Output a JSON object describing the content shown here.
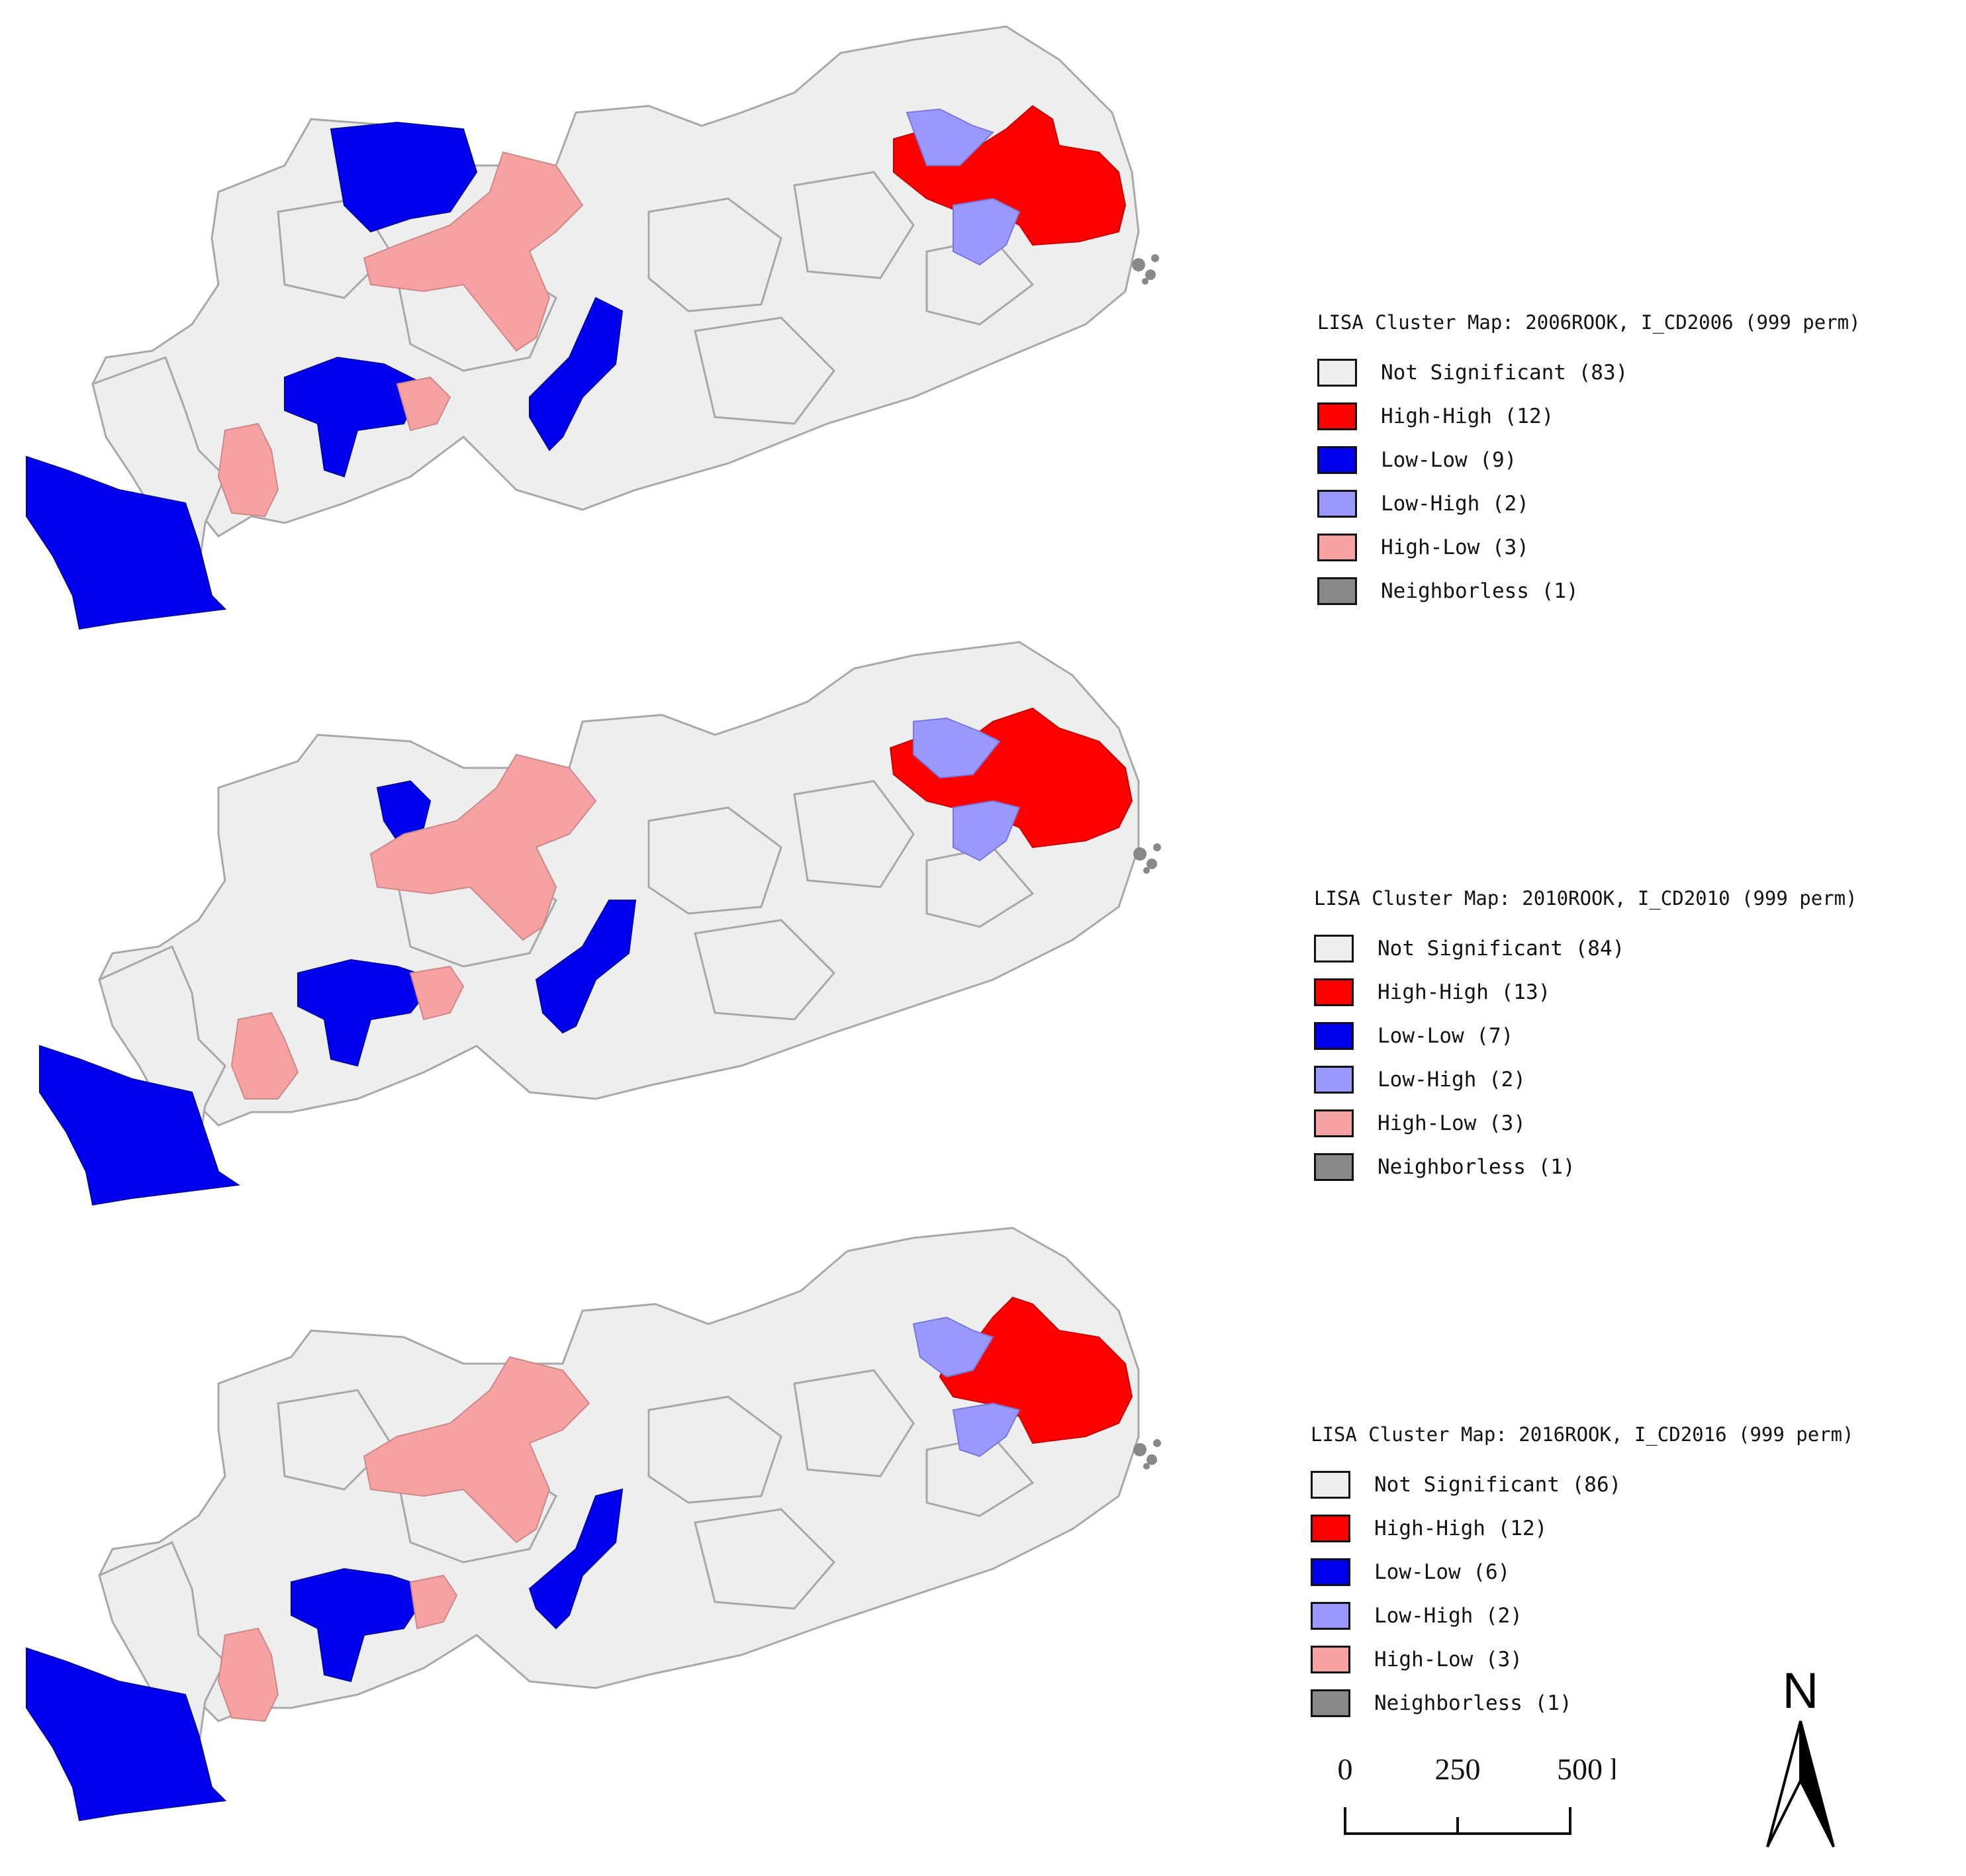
{
  "colors": {
    "not_significant": "#eeeeee",
    "high_high": "#ff0000",
    "low_low": "#0000ee",
    "low_high": "#9999ff",
    "high_low": "#f7a2a2",
    "neighborless": "#888888",
    "boundary": "#a8a8a8"
  },
  "panels": [
    {
      "title": "LISA Cluster Map: 2006ROOK, I_CD2006 (999 perm)",
      "legend": [
        {
          "label": "Not Significant (83)",
          "color": "#eeeeee"
        },
        {
          "label": "High-High (12)",
          "color": "#ff0000"
        },
        {
          "label": "Low-Low (9)",
          "color": "#0000ee"
        },
        {
          "label": "Low-High (2)",
          "color": "#9999ff"
        },
        {
          "label": "High-Low (3)",
          "color": "#f7a2a2"
        },
        {
          "label": "Neighborless (1)",
          "color": "#888888"
        }
      ]
    },
    {
      "title": "LISA Cluster Map: 2010ROOK, I_CD2010 (999 perm)",
      "legend": [
        {
          "label": "Not Significant (84)",
          "color": "#eeeeee"
        },
        {
          "label": "High-High (13)",
          "color": "#ff0000"
        },
        {
          "label": "Low-Low (7)",
          "color": "#0000ee"
        },
        {
          "label": "Low-High (2)",
          "color": "#9999ff"
        },
        {
          "label": "High-Low (3)",
          "color": "#f7a2a2"
        },
        {
          "label": "Neighborless (1)",
          "color": "#888888"
        }
      ]
    },
    {
      "title": "LISA Cluster Map: 2016ROOK, I_CD2016 (999 perm)",
      "legend": [
        {
          "label": "Not Significant (86)",
          "color": "#eeeeee"
        },
        {
          "label": "High-High (12)",
          "color": "#ff0000"
        },
        {
          "label": "Low-Low (6)",
          "color": "#0000ee"
        },
        {
          "label": "Low-High (2)",
          "color": "#9999ff"
        },
        {
          "label": "High-Low (3)",
          "color": "#f7a2a2"
        },
        {
          "label": "Neighborless (1)",
          "color": "#888888"
        }
      ]
    }
  ],
  "scale_bar": {
    "ticks": [
      "0",
      "250",
      "500 km"
    ]
  },
  "north_arrow": {
    "label": "N"
  }
}
